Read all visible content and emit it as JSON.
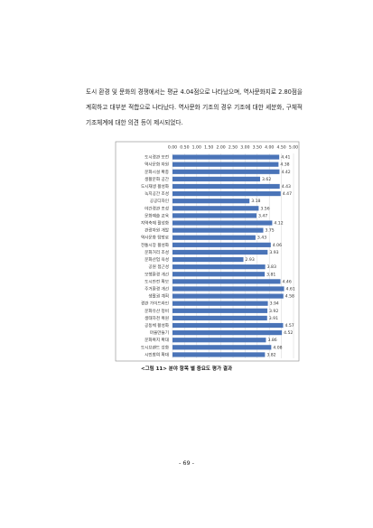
{
  "paragraph": "도시 환경 및 문화의 경쟁에서는 평균 4.04점으로 나타났으며, 역사문화지로 2.80점을 계획하고 대부분 적합으로 나타났다. 역사문화 기조의 경우 기조에 대한 세분화, 구체적 기조체계에 대한 의견 등이 제시되었다.",
  "chart_data": {
    "type": "bar",
    "orientation": "horizontal",
    "color": "#4a74b8",
    "grid": true,
    "xlim": [
      0,
      5
    ],
    "xticks": [
      {
        "value": 0,
        "label": "0.00"
      },
      {
        "value": 0.5,
        "label": "0.50"
      },
      {
        "value": 1,
        "label": "1.00"
      },
      {
        "value": 1.5,
        "label": "1.50"
      },
      {
        "value": 2,
        "label": "2.00"
      },
      {
        "value": 2.5,
        "label": "2.50"
      },
      {
        "value": 3,
        "label": "3.00"
      },
      {
        "value": 3.5,
        "label": "3.50"
      },
      {
        "value": 4,
        "label": "4.00"
      },
      {
        "value": 4.5,
        "label": "4.50"
      },
      {
        "value": 5,
        "label": "5.00"
      }
    ],
    "categories": [
      "도시경관 보전",
      "역사문화 자원",
      "문화시설 확충",
      "생활문화 공간",
      "도시재생 활성화",
      "녹지공간 조성",
      "공공디자인",
      "야간경관 조성",
      "문화예술 교육",
      "지역축제 활성화",
      "관광자원 개발",
      "역사문화 탐방로",
      "전통시장 활성화",
      "문화거리 조성",
      "문화산업 육성",
      "공원 접근성",
      "보행환경 개선",
      "도시안전 확보",
      "주거환경 개선",
      "생활권 계획",
      "경관 가이드라인",
      "문화유산 정비",
      "생태하천 복원",
      "공동체 활성화",
      "마을만들기",
      "문화복지 확대",
      "도시브랜드 강화",
      "시민참여 확대"
    ],
    "values": [
      4.41,
      4.38,
      4.42,
      3.62,
      4.43,
      4.47,
      3.18,
      3.56,
      3.47,
      4.12,
      3.75,
      3.43,
      4.06,
      3.93,
      2.93,
      3.83,
      3.81,
      4.46,
      4.61,
      4.58,
      3.94,
      3.92,
      3.91,
      4.57,
      4.52,
      3.86,
      4.08,
      3.82
    ]
  },
  "caption": "<그림 11> 분야 항목 별 중요도 평가 결과",
  "page_number": "- 69 -"
}
